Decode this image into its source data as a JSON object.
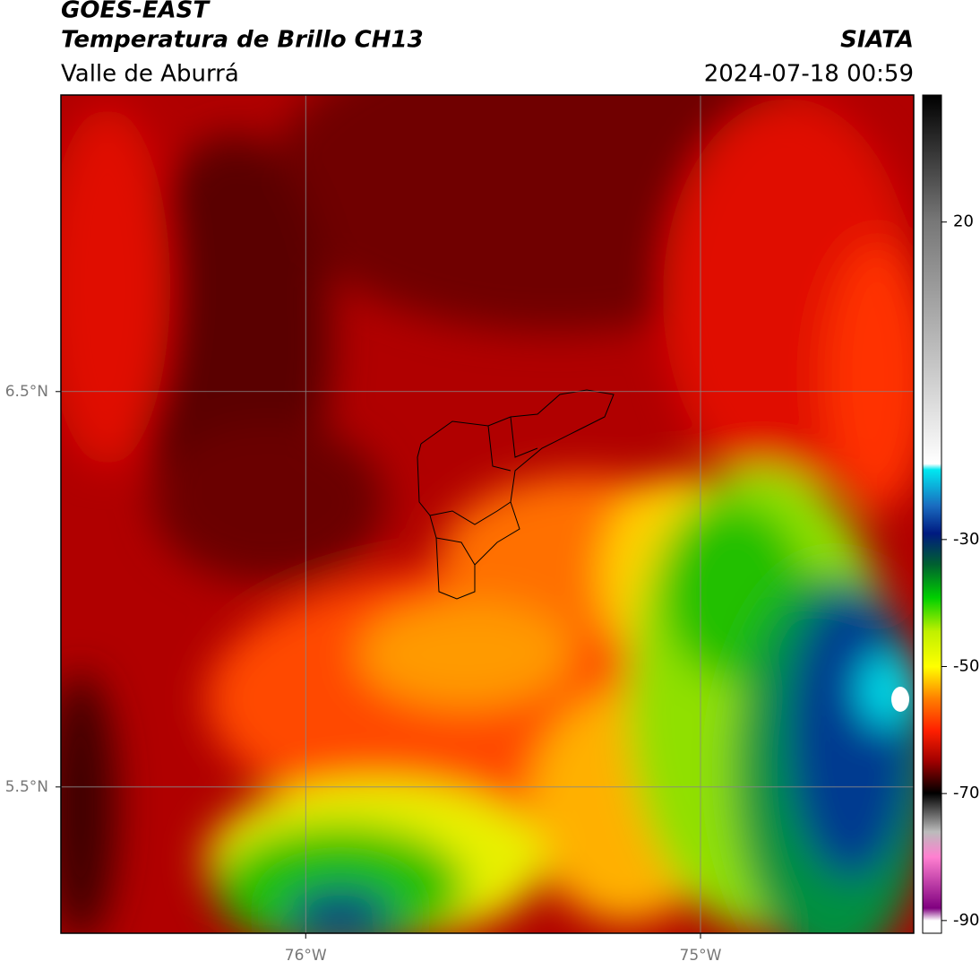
{
  "header": {
    "title": "GOES-EAST",
    "subtitle": "Temperatura de Brillo CH13",
    "region": "Valle de Aburrá",
    "source": "SIATA",
    "datetime": "2024-07-18 00:59"
  },
  "map": {
    "xlim": [
      -76.62,
      -74.46
    ],
    "ylim": [
      5.13,
      7.25
    ],
    "xticks": [
      {
        "value": -76,
        "label": "76°W"
      },
      {
        "value": -75,
        "label": "75°W"
      }
    ],
    "yticks": [
      {
        "value": 6.5,
        "label": "6.5°N"
      },
      {
        "value": 5.5,
        "label": "5.5°N"
      }
    ],
    "grid": true
  },
  "colorbar": {
    "lim": [
      -92,
      40
    ],
    "ticks": [
      20,
      -30,
      -50,
      -70,
      -90
    ]
  }
}
